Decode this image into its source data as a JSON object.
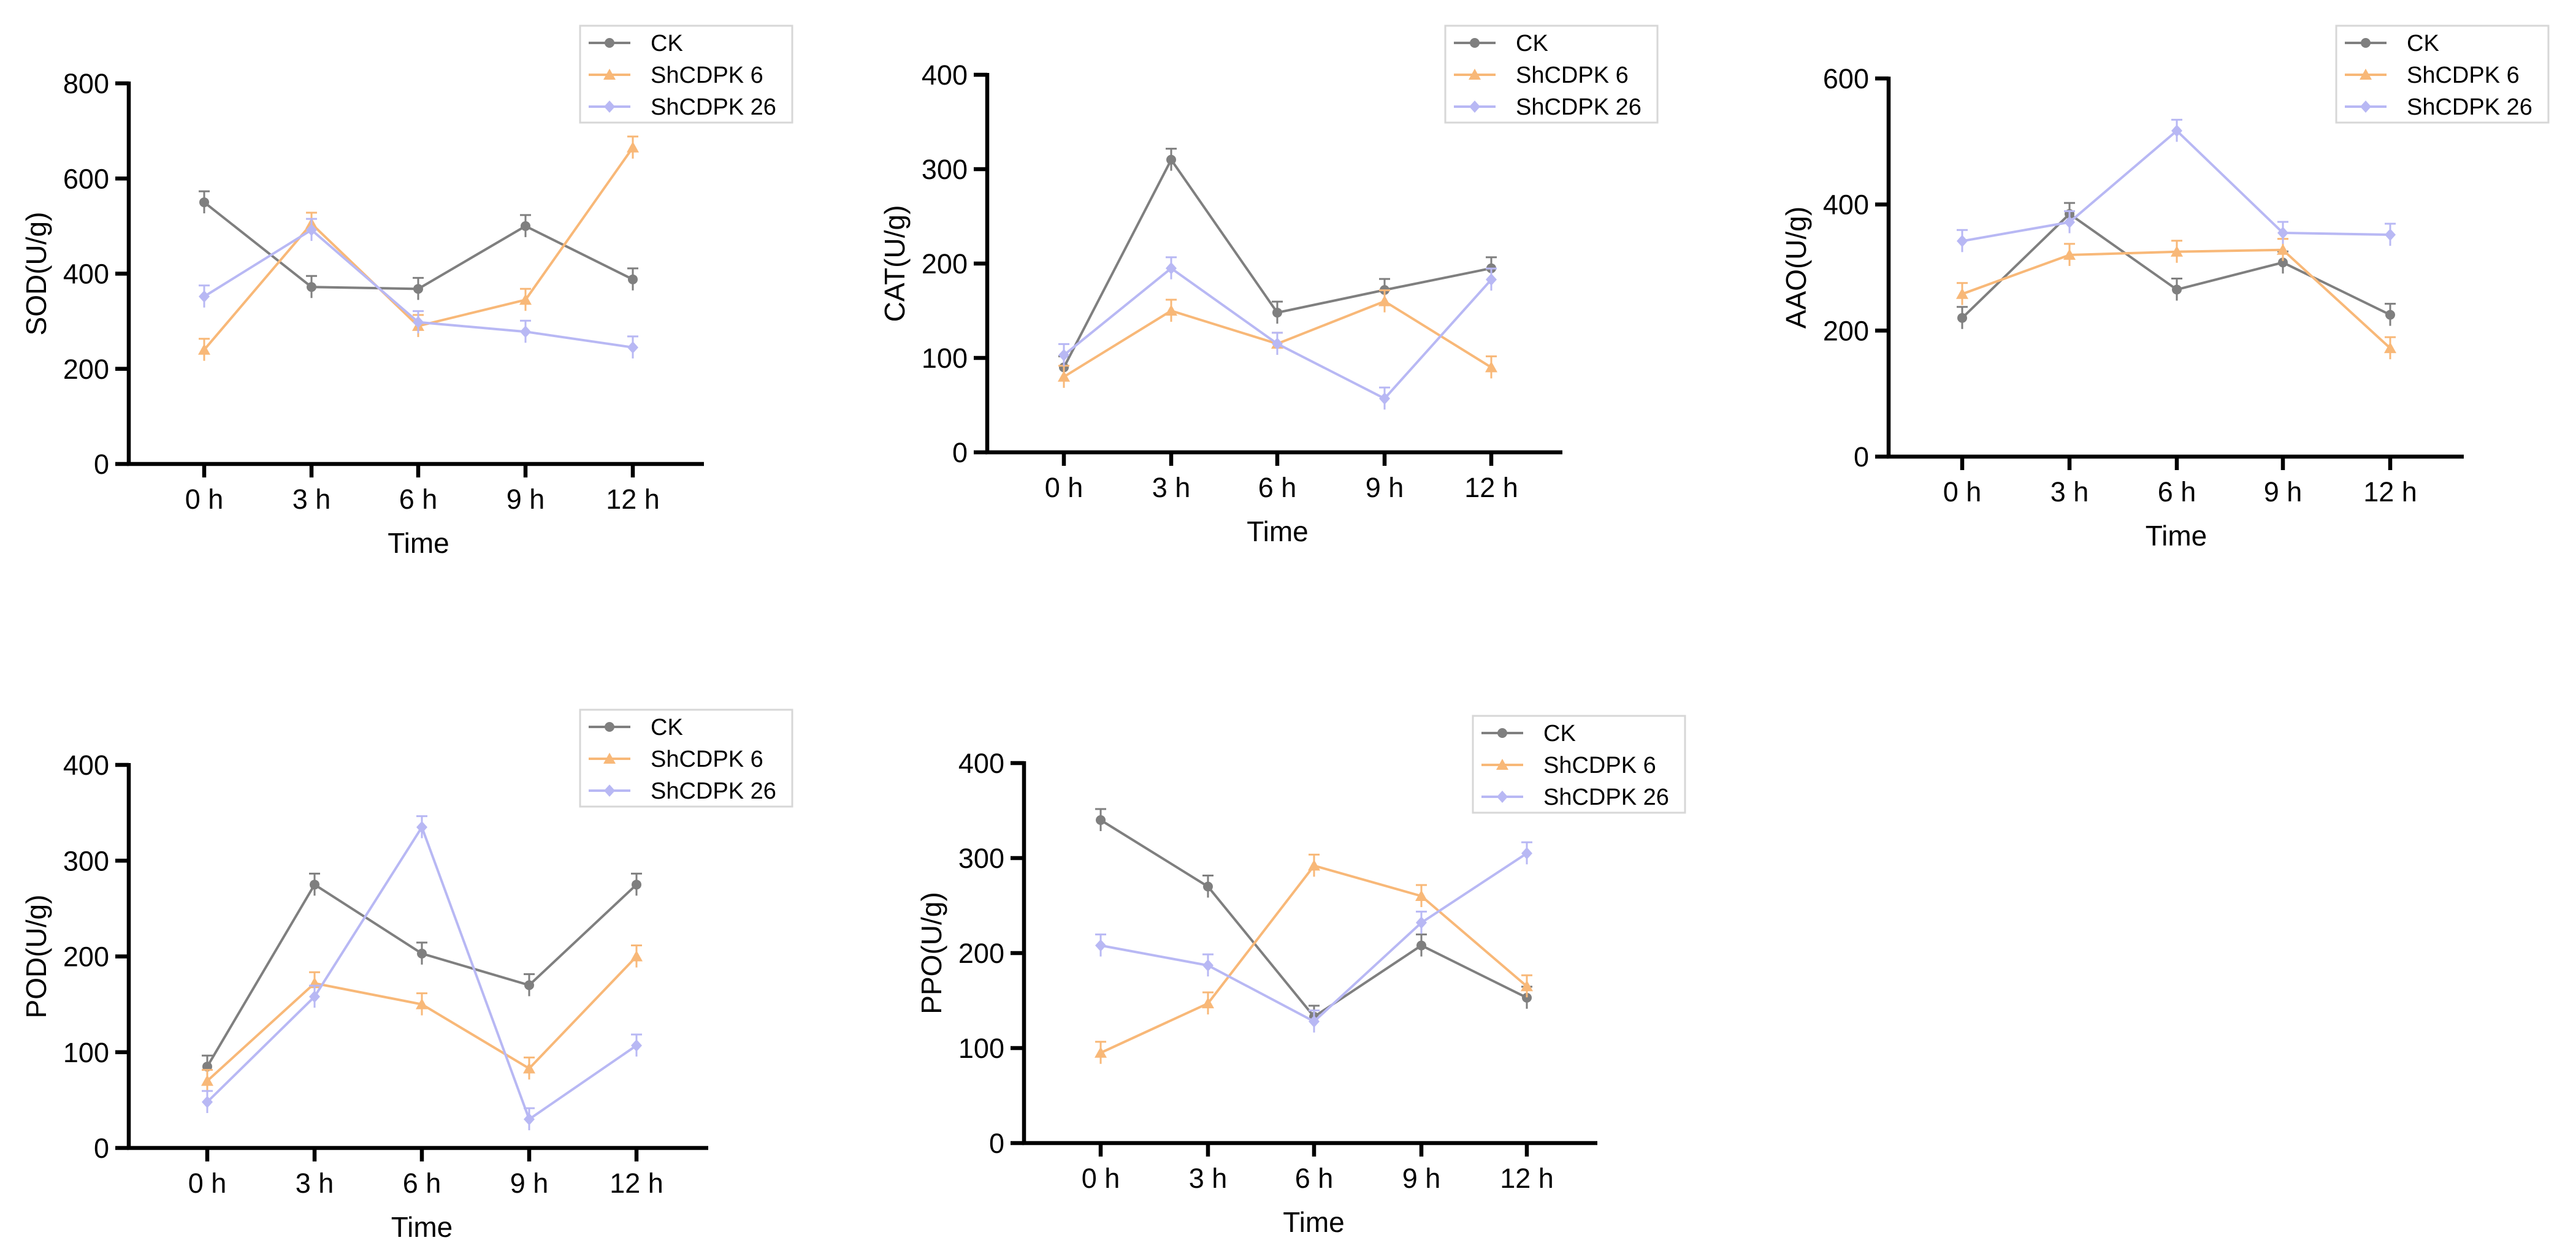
{
  "colors": {
    "CK": "#7f7f7f",
    "ShCDPK 6": "#f8b878",
    "ShCDPK 26": "#b8b8f4"
  },
  "chart_data": [
    {
      "type": "line",
      "title": "",
      "xlabel": "Time",
      "ylabel": "SOD(U/g)",
      "categories": [
        "0 h",
        "3 h",
        "6 h",
        "9 h",
        "12 h"
      ],
      "ylim": [
        0,
        800
      ],
      "yticks": [
        0,
        200,
        400,
        600,
        800
      ],
      "legend": "top-right",
      "series": [
        {
          "name": "CK",
          "marker": "circle",
          "values": [
            550,
            372,
            368,
            500,
            388
          ]
        },
        {
          "name": "ShCDPK 6",
          "marker": "triangle",
          "values": [
            240,
            505,
            290,
            345,
            665
          ]
        },
        {
          "name": "ShCDPK 26",
          "marker": "diamond",
          "values": [
            352,
            492,
            298,
            278,
            245
          ]
        }
      ]
    },
    {
      "type": "line",
      "title": "",
      "xlabel": "Time",
      "ylabel": "CAT(U/g)",
      "categories": [
        "0 h",
        "3 h",
        "6 h",
        "9 h",
        "12 h"
      ],
      "ylim": [
        0,
        400
      ],
      "yticks": [
        0,
        100,
        200,
        300,
        400
      ],
      "legend": "top-right",
      "series": [
        {
          "name": "CK",
          "marker": "circle",
          "values": [
            90,
            310,
            148,
            172,
            195
          ]
        },
        {
          "name": "ShCDPK 6",
          "marker": "triangle",
          "values": [
            80,
            150,
            115,
            160,
            90
          ]
        },
        {
          "name": "ShCDPK 26",
          "marker": "diamond",
          "values": [
            103,
            195,
            115,
            57,
            183
          ]
        }
      ]
    },
    {
      "type": "line",
      "title": "",
      "xlabel": "Time",
      "ylabel": "AAO(U/g)",
      "categories": [
        "0 h",
        "3 h",
        "6 h",
        "9 h",
        "12 h"
      ],
      "ylim": [
        0,
        600
      ],
      "yticks": [
        0,
        200,
        400,
        600
      ],
      "legend": "top-right",
      "series": [
        {
          "name": "CK",
          "marker": "circle",
          "values": [
            220,
            385,
            265,
            308,
            225
          ]
        },
        {
          "name": "ShCDPK 6",
          "marker": "triangle",
          "values": [
            258,
            320,
            325,
            328,
            172
          ]
        },
        {
          "name": "ShCDPK 26",
          "marker": "diamond",
          "values": [
            342,
            372,
            517,
            355,
            352
          ]
        }
      ]
    },
    {
      "type": "line",
      "title": "",
      "xlabel": "Time",
      "ylabel": "POD(U/g)",
      "categories": [
        "0 h",
        "3 h",
        "6 h",
        "9 h",
        "12 h"
      ],
      "ylim": [
        0,
        400
      ],
      "yticks": [
        0,
        100,
        200,
        300,
        400
      ],
      "legend": "top-right",
      "series": [
        {
          "name": "CK",
          "marker": "circle",
          "values": [
            85,
            275,
            203,
            170,
            275
          ]
        },
        {
          "name": "ShCDPK 6",
          "marker": "triangle",
          "values": [
            70,
            172,
            150,
            83,
            200
          ]
        },
        {
          "name": "ShCDPK 26",
          "marker": "diamond",
          "values": [
            48,
            158,
            335,
            30,
            107
          ]
        }
      ]
    },
    {
      "type": "line",
      "title": "",
      "xlabel": "Time",
      "ylabel": "PPO(U/g)",
      "categories": [
        "0 h",
        "3 h",
        "6 h",
        "9 h",
        "12 h"
      ],
      "ylim": [
        0,
        400
      ],
      "yticks": [
        0,
        100,
        200,
        300,
        400
      ],
      "legend": "top-right",
      "series": [
        {
          "name": "CK",
          "marker": "circle",
          "values": [
            340,
            270,
            133,
            208,
            153
          ]
        },
        {
          "name": "ShCDPK 6",
          "marker": "triangle",
          "values": [
            95,
            147,
            292,
            260,
            165
          ]
        },
        {
          "name": "ShCDPK 26",
          "marker": "diamond",
          "values": [
            208,
            187,
            128,
            232,
            305
          ]
        }
      ]
    }
  ]
}
